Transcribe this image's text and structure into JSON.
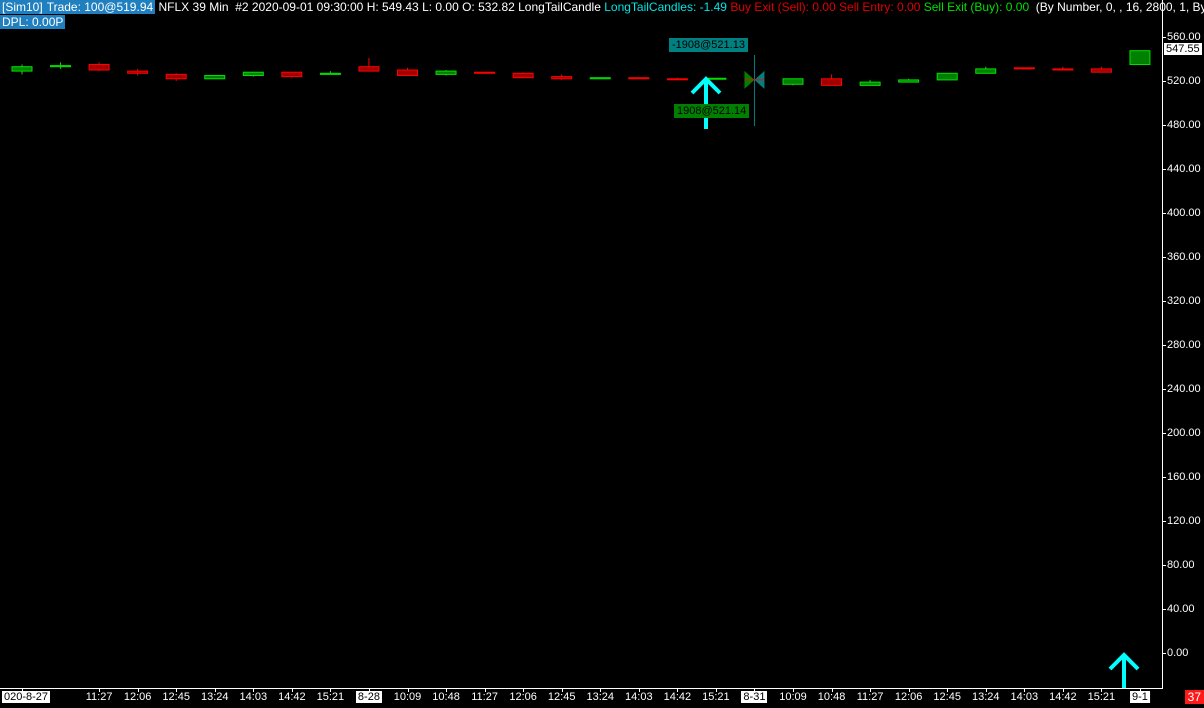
{
  "header": {
    "account": "[Sim10]",
    "trade": "Trade: 100@519.94",
    "symbol": "NFLX",
    "interval": "39 Min",
    "bar_info": "#2 2020-09-01 09:30:00 H: 549.43 L: 0.00 O: 532.82 LongTailCandle",
    "indicator": "LongTailCandles: -1.49",
    "buy_exit": "Buy Exit (Sell): 0.00",
    "sell_entry": "Sell Entry: 0.00",
    "sell_exit": "Sell Exit (Buy): 0.00",
    "params": "(By Number, 0, , 16, 2800, 1, By",
    "dpl": "DPL: 0.00P"
  },
  "colors": {
    "up": "#00e000",
    "up_fill": "#008000",
    "down": "#ff0000",
    "down_fill": "#a00000",
    "arrow": "#00ffff",
    "sell_tag": "#008080",
    "buy_tag": "#008000"
  },
  "price_axis": {
    "labels": [
      "560.00",
      "520.00",
      "480.00",
      "440.00",
      "400.00",
      "360.00",
      "320.00",
      "280.00",
      "240.00",
      "200.00",
      "160.00",
      "120.00",
      "80.00",
      "40.00",
      "0.00"
    ],
    "last_price": "547.55"
  },
  "time_axis": {
    "labels": [
      "020-8-27",
      "",
      "11:27",
      "12:06",
      "12:45",
      "13:24",
      "14:03",
      "14:42",
      "15:21",
      "8-28",
      "10:09",
      "10:48",
      "11:27",
      "12:06",
      "12:45",
      "13:24",
      "14:03",
      "14:42",
      "15:21",
      "8-31",
      "10:09",
      "10:48",
      "11:27",
      "12:06",
      "12:45",
      "13:24",
      "14:03",
      "14:42",
      "15:21",
      "9-1"
    ],
    "date_labels": [
      "020-8-27",
      "8-28",
      "8-31",
      "9-1"
    ]
  },
  "counter": "37",
  "trades": {
    "sell_label": "-1908@521.13",
    "buy_label": "1908@521.14"
  },
  "chart_data": {
    "type": "candlestick",
    "ylim": [
      0,
      560
    ],
    "candles": [
      {
        "o": 529,
        "h": 535,
        "l": 526,
        "c": 533
      },
      {
        "o": 533,
        "h": 537,
        "l": 531,
        "c": 534
      },
      {
        "o": 535,
        "h": 537,
        "l": 529,
        "c": 530
      },
      {
        "o": 529,
        "h": 531,
        "l": 525,
        "c": 527
      },
      {
        "o": 526,
        "h": 527,
        "l": 520,
        "c": 522
      },
      {
        "o": 522,
        "h": 525,
        "l": 522,
        "c": 525
      },
      {
        "o": 525,
        "h": 528,
        "l": 524,
        "c": 528
      },
      {
        "o": 528,
        "h": 528,
        "l": 523,
        "c": 524
      },
      {
        "o": 526,
        "h": 529,
        "l": 526,
        "c": 527
      },
      {
        "o": 533,
        "h": 541,
        "l": 529,
        "c": 529
      },
      {
        "o": 530,
        "h": 532,
        "l": 525,
        "c": 525
      },
      {
        "o": 526,
        "h": 530,
        "l": 525,
        "c": 529
      },
      {
        "o": 528,
        "h": 528,
        "l": 527,
        "c": 527
      },
      {
        "o": 527,
        "h": 528,
        "l": 523,
        "c": 523
      },
      {
        "o": 524,
        "h": 526,
        "l": 521,
        "c": 522
      },
      {
        "o": 522,
        "h": 523,
        "l": 522,
        "c": 523
      },
      {
        "o": 523,
        "h": 523,
        "l": 522,
        "c": 522
      },
      {
        "o": 522,
        "h": 523,
        "l": 521,
        "c": 521.5
      },
      {
        "o": 522,
        "h": 522.5,
        "l": 522,
        "c": 522.5
      },
      {
        "o": 521,
        "h": 521,
        "l": 521,
        "c": 521
      },
      {
        "o": 517,
        "h": 522,
        "l": 516,
        "c": 522
      },
      {
        "o": 522,
        "h": 526,
        "l": 516,
        "c": 516
      },
      {
        "o": 516,
        "h": 521,
        "l": 516,
        "c": 519
      },
      {
        "o": 519,
        "h": 522,
        "l": 519,
        "c": 521
      },
      {
        "o": 521,
        "h": 527,
        "l": 521,
        "c": 527
      },
      {
        "o": 527,
        "h": 533,
        "l": 527,
        "c": 531
      },
      {
        "o": 532,
        "h": 532,
        "l": 531,
        "c": 531
      },
      {
        "o": 531,
        "h": 533,
        "l": 530,
        "c": 530
      },
      {
        "o": 531,
        "h": 533,
        "l": 528,
        "c": 528
      },
      {
        "o": 535,
        "h": 547.55,
        "l": 535,
        "c": 547.55
      }
    ]
  }
}
